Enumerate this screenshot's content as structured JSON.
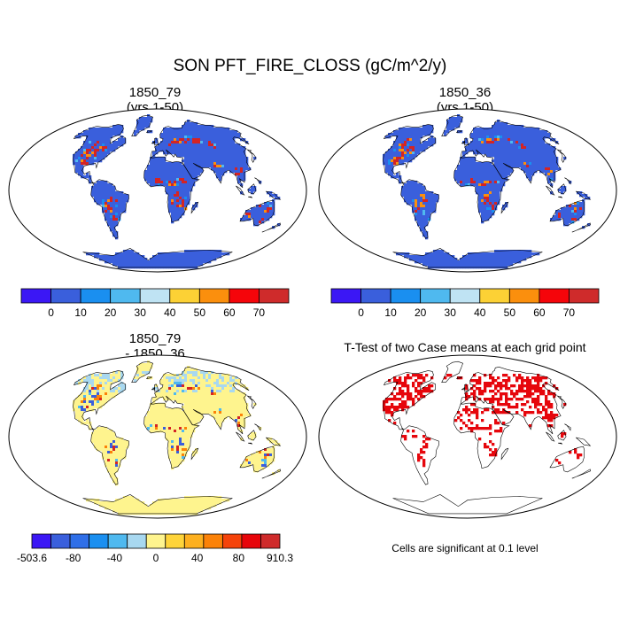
{
  "figure": {
    "title": "SON PFT_FIRE_CLOSS (gC/m^2/y)"
  },
  "chart_data": [
    {
      "type": "heatmap",
      "title": "1850_79",
      "subtitle": "(yrs 1-50)",
      "colorbar": {
        "colors": [
          "#3b17f5",
          "#3a5fdc",
          "#1a8ff0",
          "#4fb9ef",
          "#bfe3f3",
          "#fcd135",
          "#fb8f0d",
          "#f5050a",
          "#cf2b2b"
        ],
        "tick_labels": [
          "0",
          "10",
          "20",
          "30",
          "40",
          "50",
          "60",
          "70"
        ]
      },
      "colors": {
        "background": "#3a5fdc",
        "hotspot": "#d42424",
        "ocean": "#ffffff"
      }
    },
    {
      "type": "heatmap",
      "title": "1850_36",
      "subtitle": "(yrs 1-50)",
      "colorbar": {
        "colors": [
          "#3b17f5",
          "#3a5fdc",
          "#1a8ff0",
          "#4fb9ef",
          "#bfe3f3",
          "#fcd135",
          "#fb8f0d",
          "#f5050a",
          "#cf2b2b"
        ],
        "tick_labels": [
          "0",
          "10",
          "20",
          "30",
          "40",
          "50",
          "60",
          "70"
        ]
      },
      "colors": {
        "background": "#3a5fdc",
        "hotspot": "#d42424",
        "ocean": "#ffffff"
      }
    },
    {
      "type": "heatmap",
      "title": "1850_79",
      "subtitle": "- 1850_36",
      "colorbar": {
        "colors": [
          "#3b17f5",
          "#3a5fdc",
          "#2f6fe8",
          "#1a8ff0",
          "#4fb9ef",
          "#a8d8f0",
          "#fef48e",
          "#fed43a",
          "#fdb01f",
          "#fb8208",
          "#f5430a",
          "#e7050a",
          "#cf2b2b"
        ],
        "tick_labels": [
          "-503.6",
          "-80",
          "-40",
          "0",
          "40",
          "80",
          "910.3"
        ]
      },
      "colors": {
        "background": "#fef48e",
        "hotspot": "#d42424",
        "ocean": "#ffffff"
      }
    },
    {
      "type": "heatmap",
      "title": "T-Test of two Case means at each grid point",
      "note": "Cells are significant at 0.1 level",
      "colors": {
        "significant": "#e6060c",
        "background": "#ffffff"
      }
    }
  ]
}
